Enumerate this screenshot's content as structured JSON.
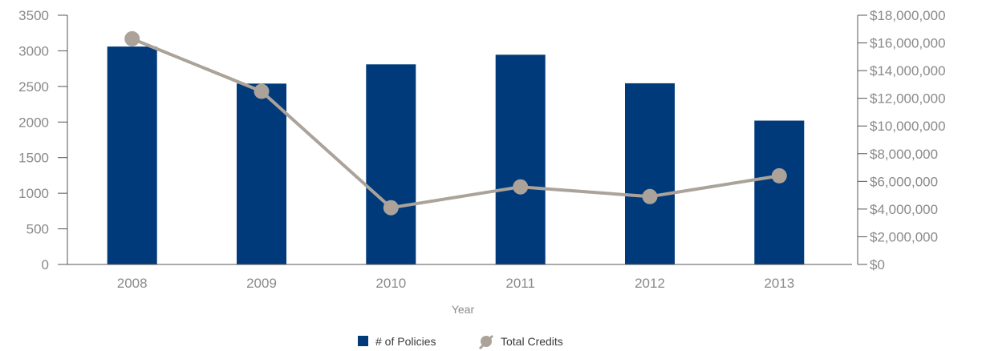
{
  "chart_data": {
    "type": "bar+line",
    "categories": [
      "2008",
      "2009",
      "2010",
      "2011",
      "2012",
      "2013"
    ],
    "xlabel": "Year",
    "series": [
      {
        "name": "# of Policies",
        "kind": "bar",
        "axis": "left",
        "color": "#003a7a",
        "values": [
          3060,
          2540,
          2810,
          2945,
          2545,
          2020
        ]
      },
      {
        "name": "Total Credits",
        "kind": "line",
        "axis": "right",
        "color": "#aba39a",
        "values": [
          16300000,
          12500000,
          4100000,
          5600000,
          4900000,
          6400000
        ]
      }
    ],
    "y_left": {
      "ylim": [
        0,
        3500
      ],
      "ticks": [
        0,
        500,
        1000,
        1500,
        2000,
        2500,
        3000,
        3500
      ],
      "tick_labels": [
        "0",
        "500",
        "1000",
        "1500",
        "2000",
        "2500",
        "3000",
        "3500"
      ]
    },
    "y_right": {
      "ylim": [
        0,
        18000000
      ],
      "ticks": [
        0,
        2000000,
        4000000,
        6000000,
        8000000,
        10000000,
        12000000,
        14000000,
        16000000,
        18000000
      ],
      "tick_labels": [
        "$0",
        "$2,000,000",
        "$4,000,000",
        "$6,000,000",
        "$8,000,000",
        "$10,000,000",
        "$12,000,000",
        "$14,000,000",
        "$16,000,000",
        "$18,000,000"
      ]
    },
    "grid": false,
    "legend": {
      "position": "bottom-center"
    },
    "axis_color": "#555555"
  }
}
